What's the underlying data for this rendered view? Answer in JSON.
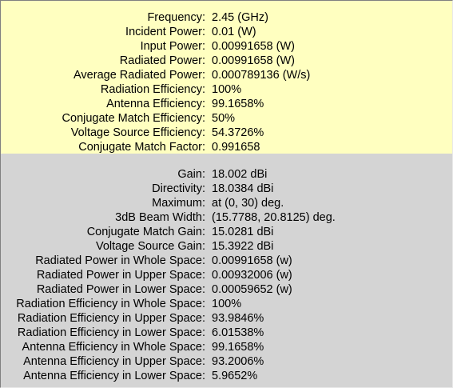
{
  "power_section": [
    {
      "label": "Frequency:",
      "value": "2.45 (GHz)"
    },
    {
      "label": "Incident Power:",
      "value": "0.01 (W)"
    },
    {
      "label": "Input Power:",
      "value": "0.00991658 (W)"
    },
    {
      "label": "Radiated Power:",
      "value": "0.00991658 (W)"
    },
    {
      "label": "Average Radiated Power:",
      "value": "0.000789136 (W/s)"
    },
    {
      "label": "Radiation Efficiency:",
      "value": "100%"
    },
    {
      "label": "Antenna Efficiency:",
      "value": "99.1658%"
    },
    {
      "label": "Conjugate Match Efficiency:",
      "value": "50%"
    },
    {
      "label": "Voltage Source Efficiency:",
      "value": "54.3726%"
    },
    {
      "label": "Conjugate Match Factor:",
      "value": "0.991658"
    }
  ],
  "gain_section": [
    {
      "label": "Gain:",
      "value": "18.002 dBi"
    },
    {
      "label": "Directivity:",
      "value": "18.0384 dBi"
    },
    {
      "label": "Maximum:",
      "value": "at (0, 30) deg."
    },
    {
      "label": "3dB Beam Width:",
      "value": "(15.7788, 20.8125) deg."
    },
    {
      "label": "Conjugate Match Gain:",
      "value": "15.0281 dBi"
    },
    {
      "label": "Voltage Source Gain:",
      "value": "15.3922 dBi"
    },
    {
      "label": "Radiated Power in Whole Space:",
      "value": "0.00991658 (w)"
    },
    {
      "label": "Radiated Power in Upper Space:",
      "value": "0.00932006 (w)"
    },
    {
      "label": "Radiated Power in Lower Space:",
      "value": "0.00059652 (w)"
    },
    {
      "label": "Radiation Efficiency in Whole Space:",
      "value": "100%"
    },
    {
      "label": "Radiation Efficiency in Upper Space:",
      "value": "93.9846%"
    },
    {
      "label": "Radiation Efficiency in Lower Space:",
      "value": "6.01538%"
    },
    {
      "label": "Antenna Efficiency in Whole Space:",
      "value": "99.1658%"
    },
    {
      "label": "Antenna Efficiency in Upper Space:",
      "value": "93.2006%"
    },
    {
      "label": "Antenna Efficiency in Lower Space:",
      "value": "5.9652%"
    }
  ],
  "colors": {
    "power_section_bg": "#ffffc0",
    "gain_section_bg": "#d4d4d4"
  }
}
